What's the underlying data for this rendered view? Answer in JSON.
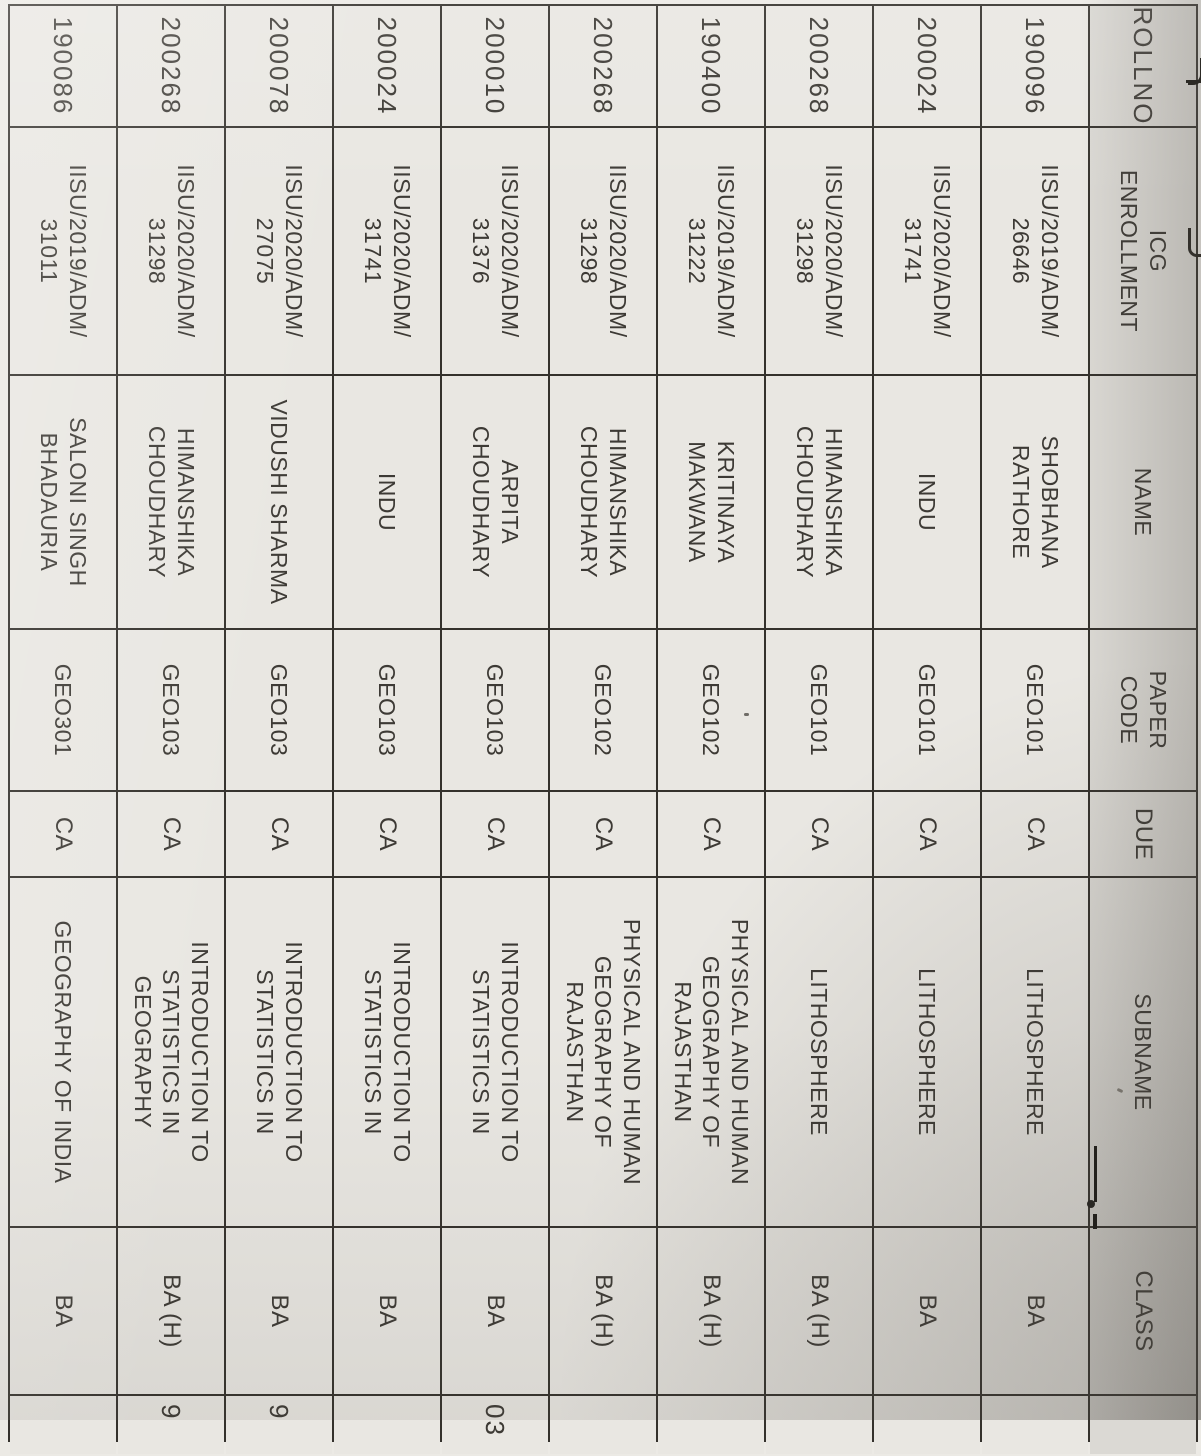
{
  "document": {
    "kind": "photographed printout of a student exam-roster spreadsheet, page rotated 90 degrees clockwise",
    "orientation_deg": 90
  },
  "colors": {
    "paper": "#eceae5",
    "cell_bg": "#e9e7e2",
    "header_bg": "#dbd9d4",
    "grid_line": "#34312c",
    "text": "#3d3a35"
  },
  "table": {
    "columns": [
      {
        "key": "rollno",
        "label": "ROLLNO"
      },
      {
        "key": "enrollment",
        "label": "ICG\nENROLLMENT"
      },
      {
        "key": "name",
        "label": "NAME"
      },
      {
        "key": "paper_code",
        "label": "PAPER\nCODE"
      },
      {
        "key": "due",
        "label": "DUE"
      },
      {
        "key": "subname",
        "label": "SUBNAME"
      },
      {
        "key": "class",
        "label": "CLASS"
      },
      {
        "key": "extra",
        "label": ""
      }
    ],
    "rows": [
      {
        "rollno": "190096",
        "enrollment": "IISU/2019/ADM/\n26646",
        "name": "SHOBHANA\nRATHORE",
        "paper_code": "GEO101",
        "due": "CA",
        "subname": "LITHOSPHERE",
        "class": "BA",
        "extra": ""
      },
      {
        "rollno": "200024",
        "enrollment": "IISU/2020/ADM/\n31741",
        "name": "INDU",
        "paper_code": "GEO101",
        "due": "CA",
        "subname": "LITHOSPHERE",
        "class": "BA",
        "extra": ""
      },
      {
        "rollno": "200268",
        "enrollment": "IISU/2020/ADM/\n31298",
        "name": "HIMANSHIKA\nCHOUDHARY",
        "paper_code": "GEO101",
        "due": "CA",
        "subname": "LITHOSPHERE",
        "class": "BA (H)",
        "extra": ""
      },
      {
        "rollno": "190400",
        "enrollment": "IISU/2019/ADM/\n31222",
        "name": "KRITINAYA\nMAKWANA",
        "paper_code": "GEO102",
        "due": "CA",
        "subname": "PHYSICAL AND HUMAN\nGEOGRAPHY OF\nRAJASTHAN",
        "class": "BA (H)",
        "extra": ""
      },
      {
        "rollno": "200268",
        "enrollment": "IISU/2020/ADM/\n31298",
        "name": "HIMANSHIKA\nCHOUDHARY",
        "paper_code": "GEO102",
        "due": "CA",
        "subname": "PHYSICAL AND HUMAN\nGEOGRAPHY OF\nRAJASTHAN",
        "class": "BA (H)",
        "extra": ""
      },
      {
        "rollno": "200010",
        "enrollment": "IISU/2020/ADM/\n31376",
        "name": "ARPITA\nCHOUDHARY",
        "paper_code": "GEO103",
        "due": "CA",
        "subname": "INTRODUCTION TO\nSTATISTICS IN",
        "class": "BA",
        "extra": "03"
      },
      {
        "rollno": "200024",
        "enrollment": "IISU/2020/ADM/\n31741",
        "name": "INDU",
        "paper_code": "GEO103",
        "due": "CA",
        "subname": "INTRODUCTION TO\nSTATISTICS IN",
        "class": "BA",
        "extra": ""
      },
      {
        "rollno": "200078",
        "enrollment": "IISU/2020/ADM/\n27075",
        "name": "VIDUSHI SHARMA",
        "paper_code": "GEO103",
        "due": "CA",
        "subname": "INTRODUCTION TO\nSTATISTICS IN",
        "class": "BA",
        "extra": "9"
      },
      {
        "rollno": "200268",
        "enrollment": "IISU/2020/ADM/\n31298",
        "name": "HIMANSHIKA\nCHOUDHARY",
        "paper_code": "GEO103",
        "due": "CA",
        "subname": "INTRODUCTION TO\nSTATISTICS IN\nGEOGRAPHY",
        "class": "BA (H)",
        "extra": "9"
      },
      {
        "rollno": "190086",
        "enrollment": "IISU/2019/ADM/\n31011",
        "name": "SALONI SINGH\nBHADAURIA",
        "paper_code": "GEO301",
        "due": "CA",
        "subname": "GEOGRAPHY OF INDIA",
        "class": "BA",
        "extra": ""
      }
    ]
  }
}
